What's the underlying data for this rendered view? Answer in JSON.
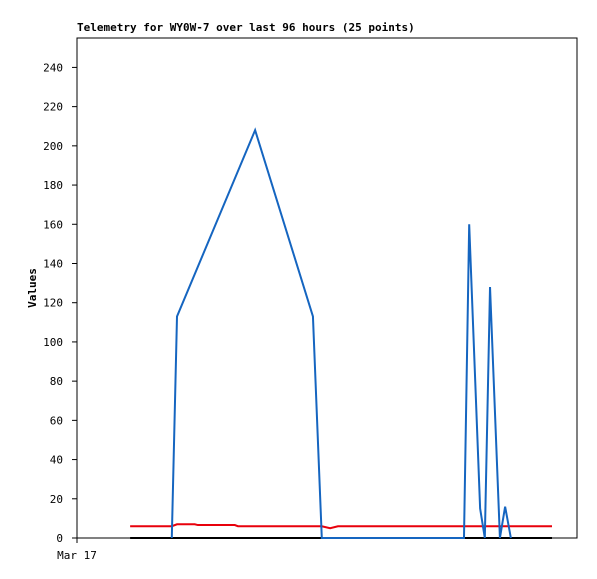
{
  "chart_data": {
    "type": "line",
    "title": "Telemetry for WY0W-7 over last 96 hours (25 points)",
    "y_label": "Values",
    "xlim": [
      0,
      96
    ],
    "xticks": [
      {
        "value": 0,
        "label": "Mar 17"
      }
    ],
    "ylim": [
      0,
      255
    ],
    "yticks": [
      0,
      20,
      40,
      60,
      80,
      100,
      120,
      140,
      160,
      180,
      200,
      220,
      240
    ],
    "grid": false,
    "series": [
      {
        "name": "black",
        "color": "#000000",
        "x": [
          10.2,
          91.2
        ],
        "values": [
          0,
          0
        ]
      },
      {
        "name": "red",
        "color": "#e8000b",
        "x": [
          10.2,
          18.2,
          19.2,
          22.6,
          23.2,
          30.3,
          30.9,
          47.0,
          48.6,
          50.1,
          91.2
        ],
        "values": [
          6,
          6,
          7,
          7,
          6.6,
          6.6,
          6,
          6,
          5,
          6,
          6
        ]
      },
      {
        "name": "blue",
        "color": "#1565c0",
        "x": [
          18.2,
          19.2,
          34.2,
          45.3,
          47.0,
          74.3,
          75.3,
          77.4,
          78.3,
          79.3,
          81.2,
          82.2,
          83.3
        ],
        "values": [
          0,
          113,
          208,
          113,
          0,
          0,
          160,
          15,
          0,
          128,
          0,
          16,
          0
        ]
      }
    ]
  }
}
